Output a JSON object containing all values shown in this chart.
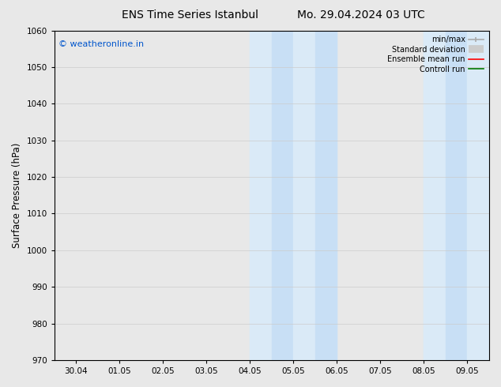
{
  "title_left": "ENS Time Series Istanbul",
  "title_right": "Mo. 29.04.2024 03 UTC",
  "ylabel": "Surface Pressure (hPa)",
  "ylim": [
    970,
    1060
  ],
  "yticks": [
    970,
    980,
    990,
    1000,
    1010,
    1020,
    1030,
    1040,
    1050,
    1060
  ],
  "xtick_labels": [
    "30.04",
    "01.05",
    "02.05",
    "03.05",
    "04.05",
    "05.05",
    "06.05",
    "07.05",
    "08.05",
    "09.05"
  ],
  "xtick_positions": [
    0,
    1,
    2,
    3,
    4,
    5,
    6,
    7,
    8,
    9
  ],
  "xlim": [
    -0.5,
    9.5
  ],
  "shaded_regions": [
    {
      "xmin": 3.5,
      "xmax": 4.5,
      "color": "#daeaf7"
    },
    {
      "xmin": 4.5,
      "xmax": 5.5,
      "color": "#daeaf7"
    },
    {
      "xmin": 7.5,
      "xmax": 8.5,
      "color": "#daeaf7"
    },
    {
      "xmin": 8.5,
      "xmax": 9.5,
      "color": "#daeaf7"
    }
  ],
  "watermark_text": "© weatheronline.in",
  "watermark_color": "#0055cc",
  "background_color": "#e8e8e8",
  "plot_bg_color": "#e8e8e8",
  "grid_color": "#cccccc",
  "legend_items": [
    {
      "label": "min/max",
      "color": "#aaaaaa",
      "lw": 1.2
    },
    {
      "label": "Standard deviation",
      "color": "#cccccc",
      "lw": 6
    },
    {
      "label": "Ensemble mean run",
      "color": "#ff0000",
      "lw": 1.2
    },
    {
      "label": "Controll run",
      "color": "#007700",
      "lw": 1.2
    }
  ],
  "title_fontsize": 10,
  "tick_fontsize": 7.5,
  "ylabel_fontsize": 8.5,
  "watermark_fontsize": 8
}
